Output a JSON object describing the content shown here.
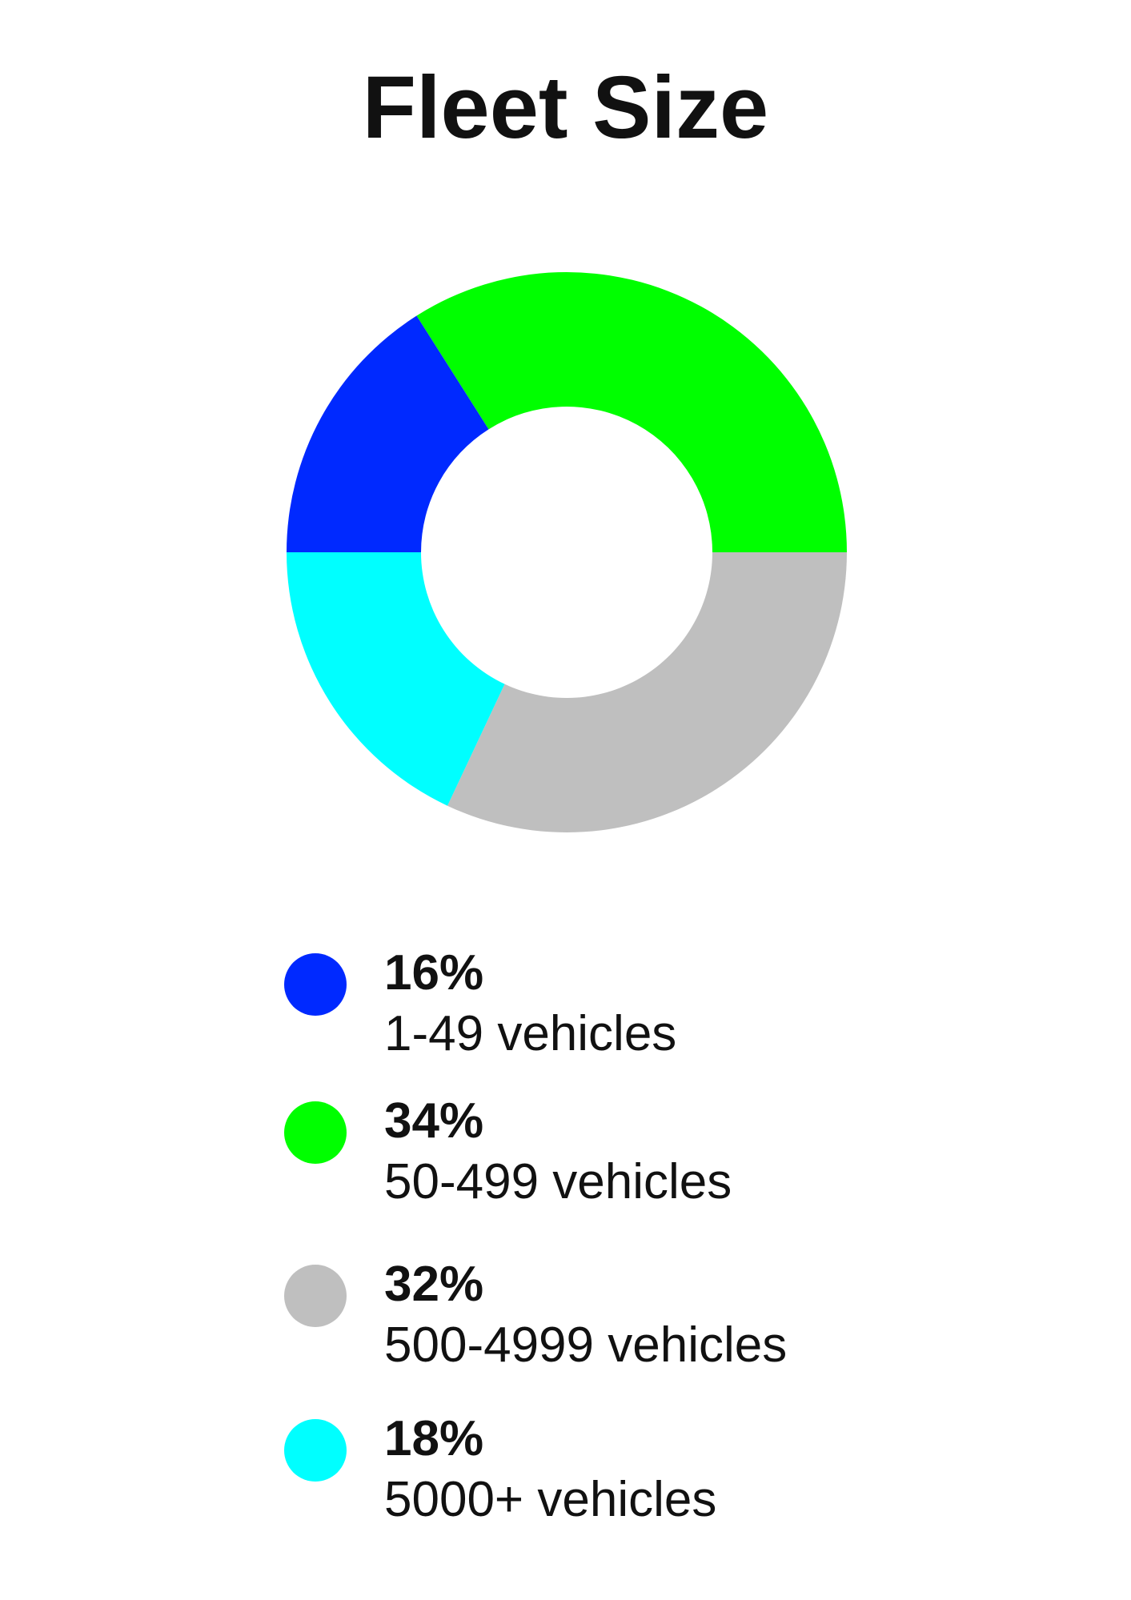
{
  "chart_data": {
    "type": "pie",
    "style": "donut",
    "title": "Fleet Size",
    "legend_position": "bottom",
    "slices": [
      {
        "value_label": "16%",
        "label": "1-49 vehicles",
        "value": 16,
        "color": "#0029ff"
      },
      {
        "value_label": "34%",
        "label": "50-499 vehicles",
        "value": 34,
        "color": "#00ff00"
      },
      {
        "value_label": "32%",
        "label": "500-4999 vehicles",
        "value": 32,
        "color": "#bfbfbf"
      },
      {
        "value_label": "18%",
        "label": "5000+ vehicles",
        "value": 18,
        "color": "#00ffff"
      }
    ]
  }
}
